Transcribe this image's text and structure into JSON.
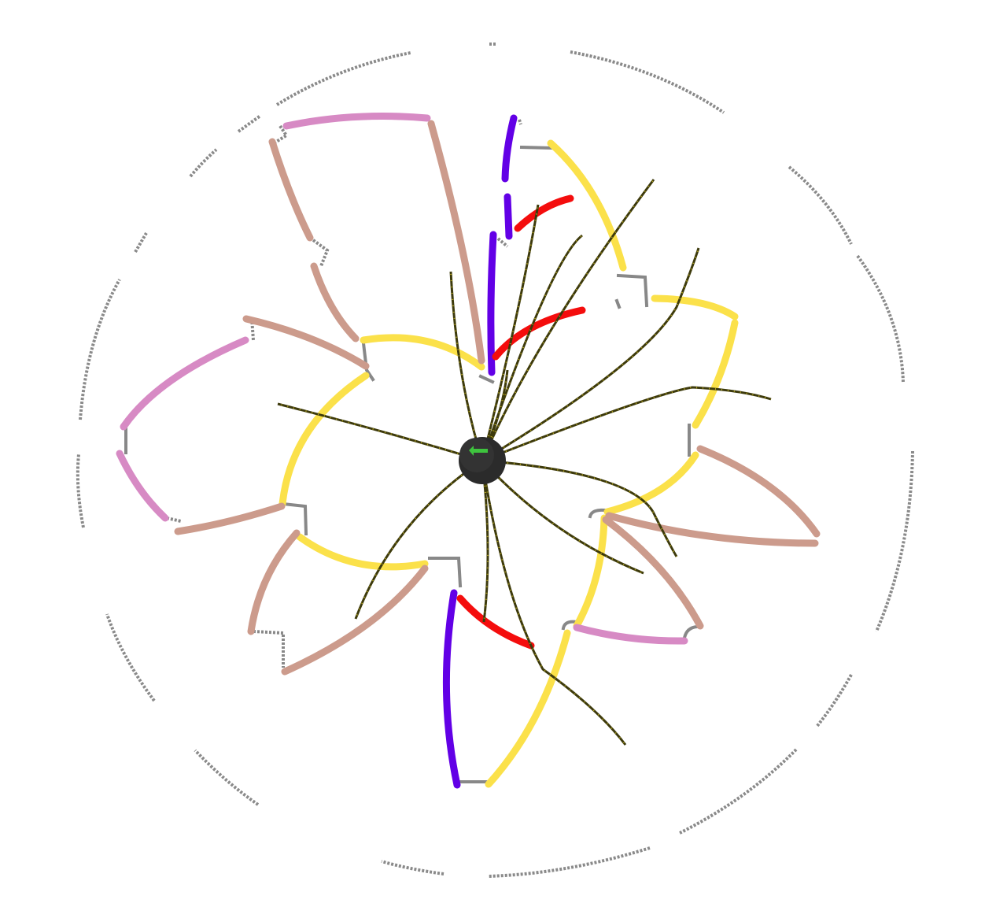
{
  "scene": {
    "hub": {
      "label": "",
      "fill": "#2b2b2b",
      "glyph_color": "#3ec43e"
    },
    "palette": {
      "yellow": "#fbe14a",
      "brown": "#cc9b8c",
      "pink": "#d78ac4",
      "violet": "#6200e6",
      "red": "#f40d0d",
      "gray": "#888888",
      "spoke": "#3d3a0c",
      "spoke_tick": "#b8a820"
    },
    "track_groups": [
      {
        "name": "yellow-tracks",
        "color": "yellow",
        "count": 10
      },
      {
        "name": "brown-tracks",
        "color": "brown",
        "count": 14
      },
      {
        "name": "pink-tracks",
        "color": "pink",
        "count": 4
      },
      {
        "name": "violet-tracks",
        "color": "violet",
        "count": 4
      },
      {
        "name": "red-tracks",
        "color": "red",
        "count": 3
      }
    ],
    "spoke_count": 16
  }
}
